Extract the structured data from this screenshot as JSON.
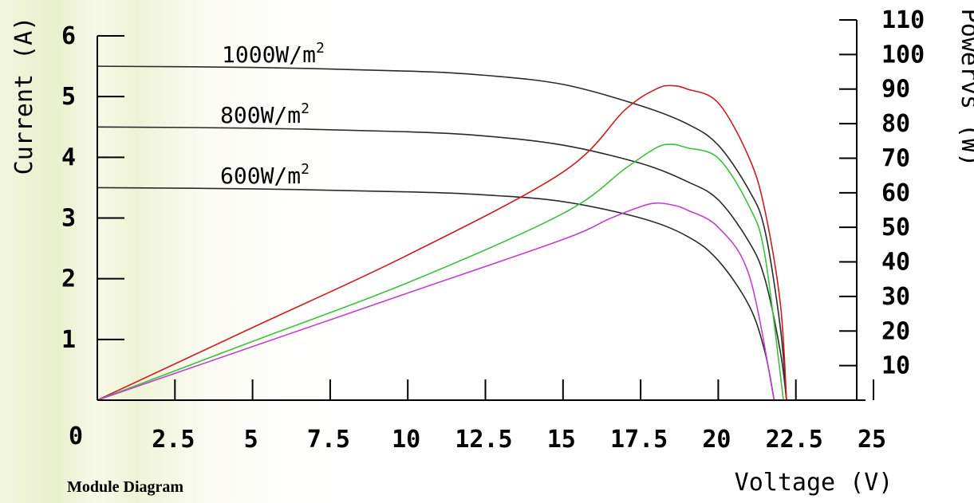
{
  "chart_data": {
    "type": "line",
    "caption": "Module Diagram",
    "xlabel": "Voltage (V)",
    "ylabel_left": "Current (A)",
    "ylabel_right": "Powervs (W)",
    "xlim": [
      0,
      25
    ],
    "ylim_left": [
      0,
      6
    ],
    "ylim_right": [
      0,
      110
    ],
    "x_ticks": [
      "2.5",
      "5",
      "7.5",
      "10",
      "12.5",
      "15",
      "17.5",
      "20",
      "22.5",
      "25"
    ],
    "x_tick_values": [
      2.5,
      5,
      7.5,
      10,
      12.5,
      15,
      17.5,
      20,
      22.5,
      25
    ],
    "origin_label": "0",
    "y_left_ticks": [
      "1",
      "2",
      "3",
      "4",
      "5",
      "6"
    ],
    "y_left_tick_values": [
      1,
      2,
      3,
      4,
      5,
      6
    ],
    "y_right_ticks": [
      "10",
      "20",
      "30",
      "40",
      "50",
      "60",
      "70",
      "80",
      "90",
      "100",
      "110"
    ],
    "y_right_tick_values": [
      10,
      20,
      30,
      40,
      50,
      60,
      70,
      80,
      90,
      100,
      110
    ],
    "annotations": [
      {
        "text": "1000W/m",
        "sup": "2"
      },
      {
        "text": "800W/m",
        "sup": "2"
      },
      {
        "text": "600W/m",
        "sup": "2"
      }
    ],
    "series": [
      {
        "kind": "current",
        "axis": "left",
        "color": "#2a2a2a",
        "x": [
          0,
          5,
          10,
          12.5,
          15,
          17.5,
          19,
          20,
          21,
          21.5,
          22,
          22.2
        ],
        "y": [
          5.5,
          5.48,
          5.42,
          5.35,
          5.2,
          4.85,
          4.55,
          4.2,
          3.45,
          2.8,
          1.2,
          0
        ]
      },
      {
        "kind": "current",
        "axis": "left",
        "color": "#2a2a2a",
        "x": [
          0,
          5,
          10,
          12.5,
          15,
          17.5,
          19,
          20,
          21,
          21.5,
          22,
          22.2
        ],
        "y": [
          4.5,
          4.48,
          4.42,
          4.35,
          4.2,
          3.9,
          3.6,
          3.3,
          2.6,
          2.0,
          0.8,
          0
        ]
      },
      {
        "kind": "current",
        "axis": "left",
        "color": "#2a2a2a",
        "x": [
          0,
          5,
          10,
          12.5,
          15,
          17.5,
          19,
          20,
          21,
          21.5,
          21.8
        ],
        "y": [
          3.5,
          3.48,
          3.43,
          3.38,
          3.27,
          3.0,
          2.7,
          2.3,
          1.55,
          0.8,
          0
        ]
      },
      {
        "kind": "power",
        "axis": "right",
        "color": "#c81e1e",
        "x": [
          0,
          5,
          10,
          15,
          17,
          18,
          18.5,
          19,
          20,
          21,
          21.5,
          22,
          22.2
        ],
        "y": [
          0,
          21,
          42,
          66,
          84,
          90,
          91,
          90,
          86,
          70,
          55,
          28,
          0
        ]
      },
      {
        "kind": "power",
        "axis": "right",
        "color": "#3fbf3f",
        "x": [
          0,
          5,
          10,
          15,
          17,
          18,
          18.5,
          19,
          20,
          21,
          21.5,
          22.1
        ],
        "y": [
          0,
          17,
          34,
          54,
          67,
          73,
          74,
          73,
          70,
          56,
          42,
          0
        ]
      },
      {
        "kind": "power",
        "axis": "right",
        "color": "#c040d0",
        "x": [
          0,
          5,
          10,
          15,
          16.5,
          17.5,
          18,
          18.5,
          19,
          20,
          21,
          21.8
        ],
        "y": [
          0,
          15.5,
          31,
          46.5,
          52.5,
          56,
          57,
          56.5,
          55,
          50,
          36,
          0
        ]
      }
    ]
  }
}
